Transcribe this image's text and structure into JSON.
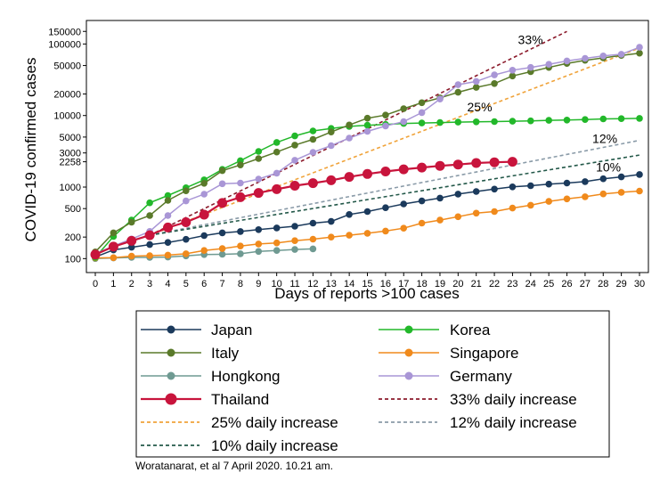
{
  "chart_data": {
    "type": "line",
    "y_scale": "log",
    "xlabel": "Days of reports >100 cases",
    "ylabel": "COVID-19 confirmed cases",
    "x_ticks": [
      "0",
      "1",
      "2",
      "3",
      "4",
      "5",
      "6",
      "7",
      "8",
      "9",
      "10",
      "11",
      "12",
      "13",
      "14",
      "15",
      "16",
      "17",
      "18",
      "19",
      "20",
      "21",
      "22",
      "23",
      "24",
      "25",
      "26",
      "27",
      "28",
      "29",
      "30"
    ],
    "y_ticks": [
      {
        "value": 100,
        "label": "100"
      },
      {
        "value": 200,
        "label": "200"
      },
      {
        "value": 500,
        "label": "500"
      },
      {
        "value": 1000,
        "label": "1000"
      },
      {
        "value": 2258,
        "label": "2258"
      },
      {
        "value": 3000,
        "label": "3000"
      },
      {
        "value": 5000,
        "label": "5000"
      },
      {
        "value": 10000,
        "label": "10000"
      },
      {
        "value": 20000,
        "label": "20000"
      },
      {
        "value": 50000,
        "label": "50000"
      },
      {
        "value": 100000,
        "label": "100000"
      },
      {
        "value": 150000,
        "label": "150000"
      }
    ],
    "xlim": [
      0,
      30
    ],
    "ylim": [
      85,
      160000
    ],
    "series": [
      {
        "name": "Japan",
        "color": "#1b3a5c",
        "style": "line-marker",
        "x": [
          0,
          1,
          2,
          3,
          4,
          5,
          6,
          7,
          8,
          9,
          10,
          11,
          12,
          13,
          14,
          15,
          16,
          17,
          18,
          19,
          20,
          21,
          22,
          23,
          24,
          25,
          26,
          27,
          28,
          29,
          30
        ],
        "values": [
          105,
          132,
          144,
          157,
          168,
          186,
          210,
          229,
          239,
          254,
          268,
          283,
          313,
          331,
          414,
          455,
          514,
          580,
          639,
          701,
          797,
          868,
          938,
          1007,
          1046,
          1101,
          1138,
          1193,
          1307,
          1387,
          1499
        ]
      },
      {
        "name": "Korea",
        "color": "#22b82a",
        "style": "line-marker",
        "x": [
          0,
          1,
          2,
          3,
          4,
          5,
          6,
          7,
          8,
          9,
          10,
          11,
          12,
          13,
          14,
          15,
          16,
          17,
          18,
          19,
          20,
          21,
          22,
          23,
          24,
          25,
          26,
          27,
          28,
          29,
          30
        ],
        "values": [
          104,
          204,
          346,
          602,
          763,
          977,
          1261,
          1766,
          2337,
          3150,
          4212,
          5186,
          6088,
          6593,
          7041,
          7314,
          7513,
          7755,
          7869,
          7979,
          8086,
          8162,
          8236,
          8320,
          8413,
          8565,
          8652,
          8799,
          8961,
          9037,
          9137
        ]
      },
      {
        "name": "Italy",
        "color": "#5a7a2a",
        "style": "line-marker",
        "x": [
          0,
          1,
          2,
          3,
          4,
          5,
          6,
          7,
          8,
          9,
          10,
          11,
          12,
          13,
          14,
          15,
          16,
          17,
          18,
          19,
          20,
          21,
          22,
          23,
          24,
          25,
          26,
          27,
          28,
          29,
          30
        ],
        "values": [
          124,
          229,
          322,
          400,
          650,
          888,
          1128,
          1694,
          2036,
          2502,
          3089,
          3858,
          4636,
          5883,
          7375,
          9172,
          10149,
          12462,
          15113,
          17660,
          21157,
          24747,
          27980,
          35713,
          41035,
          47021,
          53578,
          59138,
          63927,
          69176,
          74386
        ]
      },
      {
        "name": "Singapore",
        "color": "#f08a1c",
        "style": "line-marker",
        "x": [
          0,
          1,
          2,
          3,
          4,
          5,
          6,
          7,
          8,
          9,
          10,
          11,
          12,
          13,
          14,
          15,
          16,
          17,
          18,
          19,
          20,
          21,
          22,
          23,
          24,
          25,
          26,
          27,
          28,
          29,
          30
        ],
        "values": [
          102,
          103,
          108,
          110,
          112,
          117,
          130,
          138,
          150,
          160,
          166,
          178,
          187,
          200,
          212,
          226,
          243,
          266,
          313,
          345,
          385,
          432,
          455,
          509,
          558,
          631,
          683,
          732,
          802,
          844,
          879
        ]
      },
      {
        "name": "Hongkong",
        "color": "#6f9a92",
        "style": "line-marker",
        "x": [
          0,
          1,
          2,
          3,
          4,
          5,
          6,
          7,
          8,
          9,
          10,
          11,
          12
        ],
        "values": [
          100,
          102,
          104,
          104,
          105,
          109,
          114,
          115,
          117,
          126,
          130,
          134,
          137
        ]
      },
      {
        "name": "Germany",
        "color": "#a996d6",
        "style": "line-marker",
        "x": [
          0,
          1,
          2,
          3,
          4,
          5,
          6,
          7,
          8,
          9,
          10,
          11,
          12,
          13,
          14,
          15,
          16,
          17,
          18,
          19,
          20,
          21,
          22,
          23,
          24,
          25,
          26,
          27,
          28,
          29,
          30
        ],
        "values": [
          117,
          150,
          188,
          240,
          400,
          639,
          795,
          1112,
          1139,
          1296,
          1567,
          2369,
          3062,
          3795,
          4838,
          6012,
          7156,
          8198,
          10999,
          17000,
          27000,
          30000,
          37000,
          43000,
          47000,
          52000,
          58000,
          63000,
          68000,
          72000,
          90000
        ]
      },
      {
        "name": "Thailand",
        "color": "#c8143c",
        "style": "line-marker-large",
        "x": [
          0,
          1,
          2,
          3,
          4,
          5,
          6,
          7,
          8,
          9,
          10,
          11,
          12,
          13,
          14,
          15,
          16,
          17,
          18,
          19,
          20,
          21,
          22,
          23
        ],
        "values": [
          114,
          147,
          177,
          212,
          272,
          322,
          411,
          599,
          721,
          827,
          934,
          1045,
          1136,
          1245,
          1388,
          1524,
          1651,
          1771,
          1875,
          1978,
          2067,
          2169,
          2220,
          2258
        ]
      },
      {
        "name": "33% daily increase",
        "color": "#8b1a2b",
        "style": "dashed",
        "x": [
          3,
          26
        ],
        "values": [
          212,
          150000
        ]
      },
      {
        "name": "25% daily increase",
        "color": "#f0a33a",
        "style": "dashed",
        "x": [
          3,
          30
        ],
        "values": [
          212,
          88000
        ]
      },
      {
        "name": "12% daily increase",
        "color": "#8a9ba8",
        "style": "dashed",
        "x": [
          3,
          30
        ],
        "values": [
          212,
          4500
        ]
      },
      {
        "name": "10% daily increase",
        "color": "#24594a",
        "style": "dashed",
        "x": [
          3,
          30
        ],
        "values": [
          212,
          2800
        ]
      }
    ],
    "annotations": [
      {
        "text": "33%",
        "x": 23.3,
        "y": 100000
      },
      {
        "text": "25%",
        "x": 20.5,
        "y": 11500
      },
      {
        "text": "12%",
        "x": 27.4,
        "y": 4150
      },
      {
        "text": "10%",
        "x": 27.6,
        "y": 1650
      }
    ],
    "legend": {
      "position": "bottom",
      "columns": 2,
      "items": [
        "Japan",
        "Korea",
        "Italy",
        "Singapore",
        "Hongkong",
        "Germany",
        "Thailand",
        "33% daily increase",
        "25% daily increase",
        "12% daily increase",
        "10% daily increase"
      ]
    },
    "caption": "Woratanarat, et al 7 April 2020. 10.21 am."
  }
}
